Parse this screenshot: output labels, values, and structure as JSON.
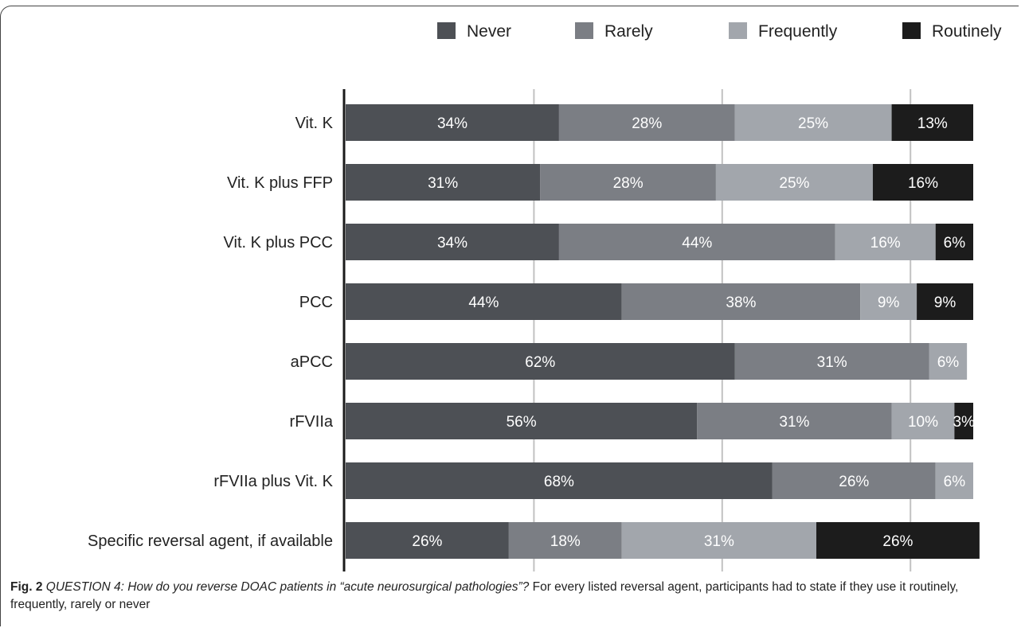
{
  "chart_data": {
    "type": "bar",
    "orientation": "horizontal",
    "stacked": true,
    "categories": [
      "Vit. K",
      "Vit. K plus FFP",
      "Vit. K plus PCC",
      "PCC",
      "aPCC",
      "rFVIIa",
      "rFVIIa plus Vit. K",
      "Specific reversal agent, if available"
    ],
    "series": [
      {
        "name": "Never",
        "color": "#4d5055",
        "values": [
          34,
          31,
          34,
          44,
          62,
          56,
          68,
          26
        ],
        "labels": [
          "34%",
          "31%",
          "34%",
          "44%",
          "62%",
          "56%",
          "68%",
          "26%"
        ]
      },
      {
        "name": "Rarely",
        "color": "#7b7e84",
        "values": [
          28,
          28,
          44,
          38,
          31,
          31,
          26,
          18
        ],
        "labels": [
          "28%",
          "28%",
          "44%",
          "38%",
          "31%",
          "31%",
          "26%",
          "18%"
        ]
      },
      {
        "name": "Frequently",
        "color": "#a2a6ac",
        "values": [
          25,
          25,
          16,
          9,
          6,
          10,
          6,
          31
        ],
        "labels": [
          "25%",
          "25%",
          "16%",
          "9%",
          "6%",
          "10%",
          "6%",
          "31%"
        ]
      },
      {
        "name": "Routinely",
        "color": "#1c1c1c",
        "values": [
          13,
          16,
          6,
          9,
          0,
          3,
          0,
          26
        ],
        "labels": [
          "13%",
          "16%",
          "6%",
          "9%",
          "",
          "3%",
          "",
          "26%"
        ]
      }
    ],
    "xlim": [
      0,
      100
    ],
    "grid": true,
    "legend_position": "top"
  },
  "caption": {
    "fig_label": "Fig. 2",
    "question_label": "QUESTION 4: How do you reverse DOAC patients in “acute neurosurgical pathologies”?",
    "text": " For every listed reversal agent, participants had to state if they use it routinely, frequently, rarely or never"
  }
}
